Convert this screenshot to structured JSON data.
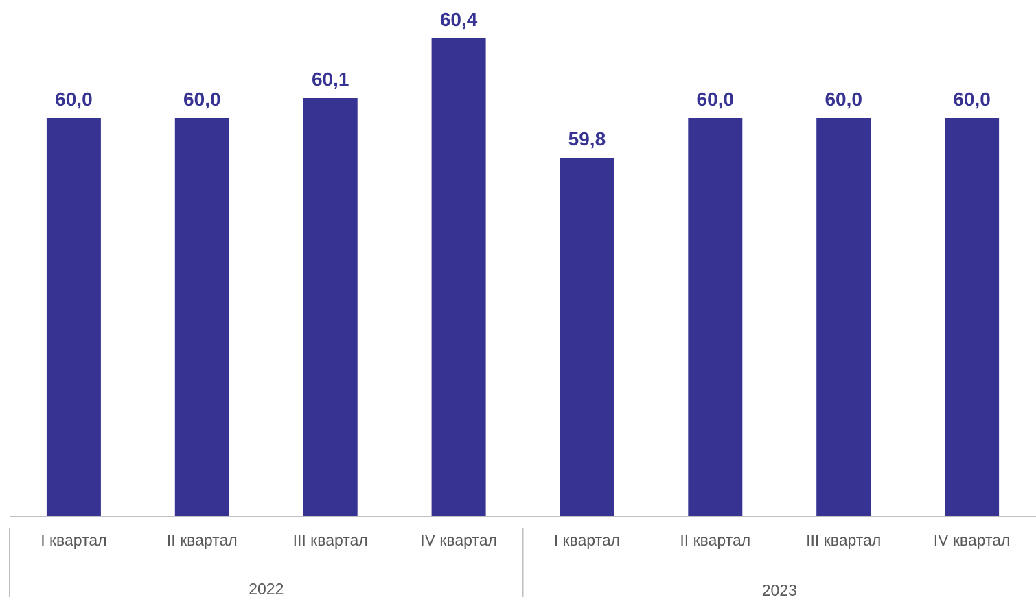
{
  "chart_data": {
    "type": "bar",
    "categories": [
      "I квартал",
      "II квартал",
      "III квартал",
      "IV квартал",
      "I квартал",
      "II квартал",
      "III квартал",
      "IV квартал"
    ],
    "groups": [
      {
        "label": "2022",
        "count": 4
      },
      {
        "label": "2023",
        "count": 4
      }
    ],
    "values": [
      60.0,
      60.0,
      60.1,
      60.4,
      59.8,
      60.0,
      60.0,
      60.0
    ],
    "value_labels": [
      "60,0",
      "60,0",
      "60,1",
      "60,4",
      "59,8",
      "60,0",
      "60,0",
      "60,0"
    ],
    "bar_color": "#373393",
    "label_color": "#373393",
    "axis_color": "#bfbfbf",
    "tick_label_color": "#595959",
    "title": "",
    "xlabel": "",
    "ylabel": "",
    "grid": false,
    "legend": "none"
  }
}
